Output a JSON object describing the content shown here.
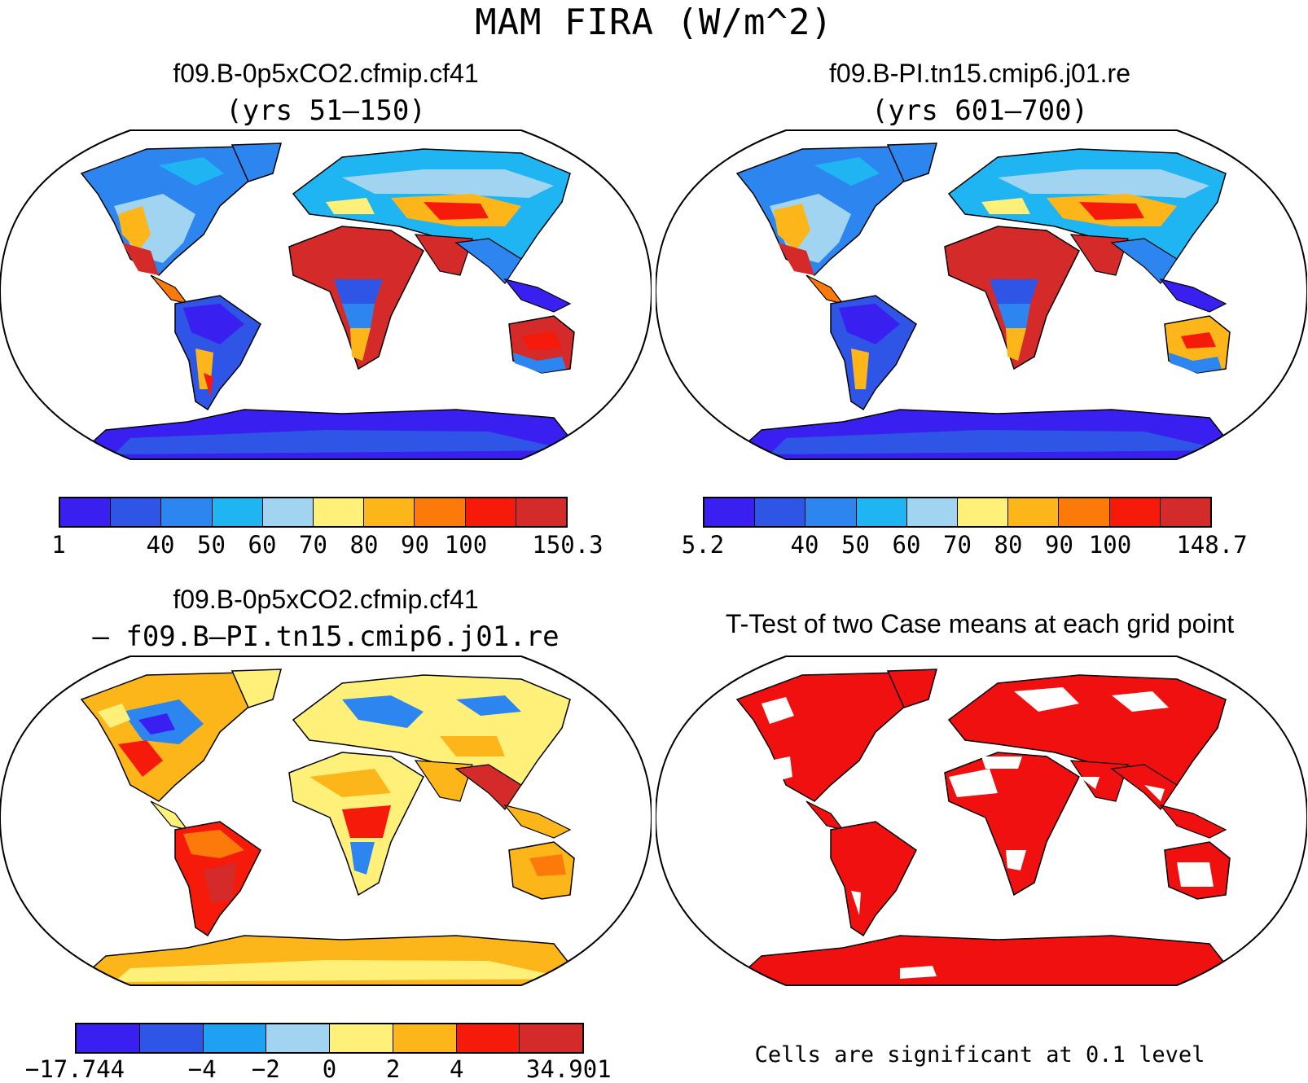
{
  "figure": {
    "title": "MAM FIRA (W/m^2)"
  },
  "panels": [
    {
      "id": "p1",
      "title": "f09.B-0p5xCO2.cfmip.cf41",
      "subtitle": "(yrs 51–150)",
      "colorbar": {
        "colors": [
          "#3a20f0",
          "#2f55e6",
          "#2d86ef",
          "#1fb4f2",
          "#a0d4f0",
          "#fff07a",
          "#fcb61a",
          "#fc7a0a",
          "#f51a0a",
          "#d42a2a"
        ],
        "labels": [
          "1",
          "40",
          "50",
          "60",
          "70",
          "80",
          "90",
          "100",
          "150.3"
        ]
      }
    },
    {
      "id": "p2",
      "title": "f09.B-PI.tn15.cmip6.j01.re",
      "subtitle": "(yrs 601–700)",
      "colorbar": {
        "colors": [
          "#3a20f0",
          "#2f55e6",
          "#2d86ef",
          "#1fb4f2",
          "#a0d4f0",
          "#fff07a",
          "#fcb61a",
          "#fc7a0a",
          "#f51a0a",
          "#d42a2a"
        ],
        "labels": [
          "5.2",
          "40",
          "50",
          "60",
          "70",
          "80",
          "90",
          "100",
          "148.7"
        ]
      }
    },
    {
      "id": "p3",
      "title": "f09.B-0p5xCO2.cfmip.cf41",
      "subtitle": "– f09.B–PI.tn15.cmip6.j01.re",
      "colorbar": {
        "colors": [
          "#3a20f0",
          "#2f55e6",
          "#1fa0f2",
          "#a0d4f0",
          "#fff07a",
          "#fcb61a",
          "#f51a0a",
          "#d42a2a"
        ],
        "labels": [
          "−17.744",
          "−4",
          "−2",
          "0",
          "2",
          "4",
          "34.901"
        ]
      }
    },
    {
      "id": "p4",
      "title": "T-Test of two Case means at each grid point",
      "note": "Cells are significant at 0.1 level",
      "significance_color": "#f01010"
    }
  ]
}
